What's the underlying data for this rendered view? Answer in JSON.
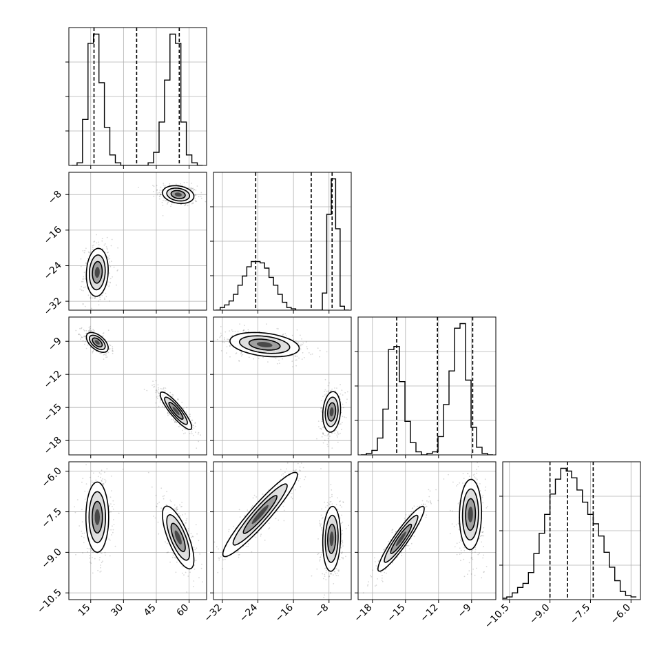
{
  "chart_data": {
    "type": "corner",
    "title": "",
    "num_parameters": 4,
    "colors": {
      "frame": "#000000",
      "grid": "#b0b0b0",
      "points": "#000000",
      "fill": "#000000"
    },
    "grid": true,
    "parameters": [
      {
        "range": [
          5,
          68
        ],
        "ticks": [
          15,
          30,
          45,
          60
        ],
        "tick_labels": [
          "15",
          "30",
          "45",
          "60"
        ]
      },
      {
        "range": [
          -34,
          -3
        ],
        "ticks": [
          -32,
          -24,
          -16,
          -8
        ],
        "tick_labels": [
          "−32",
          "−24",
          "−16",
          "−8"
        ]
      },
      {
        "range": [
          -19.3,
          -6.8
        ],
        "ticks": [
          -18,
          -15,
          -12,
          -9
        ],
        "tick_labels": [
          "−18",
          "−15",
          "−12",
          "−9"
        ]
      },
      {
        "range": [
          -10.75,
          -5.65
        ],
        "ticks": [
          -10.5,
          -9.0,
          -7.5,
          -6.0
        ],
        "tick_labels": [
          "−10.5",
          "−9.0",
          "−7.5",
          "−6.0"
        ]
      }
    ],
    "quantiles": [
      [
        16.5,
        36.0,
        55.5
      ],
      [
        -24.5,
        -12.0,
        -7.3
      ],
      [
        -15.8,
        -12.1,
        -8.9
      ],
      [
        -9.0,
        -8.35,
        -7.4
      ]
    ],
    "histograms": [
      {
        "bins": [
          7.5,
          10,
          12.5,
          15,
          17.5,
          20,
          22.5,
          25,
          27.5,
          30,
          32.5,
          35,
          37.5,
          40,
          42.5,
          45,
          47.5,
          50,
          52.5,
          55,
          57.5,
          60,
          62.5,
          65
        ],
        "counts": [
          0,
          0.02,
          0.35,
          0.93,
          1.0,
          0.63,
          0.29,
          0.08,
          0.02,
          0,
          0,
          0,
          0,
          0,
          0.02,
          0.1,
          0.33,
          0.65,
          1.0,
          0.93,
          0.33,
          0.08,
          0.02,
          0
        ]
      },
      {
        "bins": [
          -33,
          -32,
          -31,
          -30,
          -29,
          -28,
          -27,
          -26,
          -25,
          -24,
          -23,
          -22,
          -21,
          -20,
          -19,
          -18,
          -17,
          -16,
          -15,
          -14,
          -13,
          -12,
          -11,
          -10,
          -9,
          -8,
          -7,
          -6,
          -5,
          -4
        ],
        "counts": [
          0,
          0.02,
          0.04,
          0.07,
          0.12,
          0.19,
          0.26,
          0.33,
          0.37,
          0.37,
          0.36,
          0.32,
          0.25,
          0.19,
          0.12,
          0.06,
          0.02,
          0.01,
          0,
          0,
          0,
          0,
          0,
          0,
          0.13,
          0.73,
          1.0,
          0.62,
          0.03,
          0
        ]
      },
      {
        "bins": [
          -18.8,
          -18.3,
          -17.8,
          -17.3,
          -16.8,
          -16.3,
          -15.8,
          -15.3,
          -14.8,
          -14.3,
          -13.8,
          -13.3,
          -12.8,
          -12.3,
          -11.8,
          -11.3,
          -10.8,
          -10.3,
          -9.8,
          -9.3,
          -8.8,
          -8.3,
          -7.8,
          -7.3
        ],
        "counts": [
          0,
          0.01,
          0.03,
          0.11,
          0.3,
          0.69,
          0.71,
          0.48,
          0.22,
          0.08,
          0.02,
          0,
          0.01,
          0.02,
          0.12,
          0.33,
          0.55,
          0.83,
          0.86,
          0.49,
          0.18,
          0.05,
          0.01,
          0
        ]
      },
      {
        "bins": [
          -10.7,
          -10.5,
          -10.3,
          -10.1,
          -9.9,
          -9.7,
          -9.5,
          -9.3,
          -9.1,
          -8.9,
          -8.7,
          -8.5,
          -8.3,
          -8.1,
          -7.9,
          -7.7,
          -7.5,
          -7.3,
          -7.1,
          -6.9,
          -6.7,
          -6.5,
          -6.3,
          -6.1,
          -5.9
        ],
        "counts": [
          0.01,
          0.02,
          0.05,
          0.09,
          0.12,
          0.2,
          0.34,
          0.49,
          0.63,
          0.78,
          0.89,
          0.97,
          0.95,
          0.9,
          0.81,
          0.72,
          0.63,
          0.56,
          0.47,
          0.35,
          0.24,
          0.14,
          0.06,
          0.03,
          0.02
        ]
      }
    ],
    "clusters": [
      {
        "x": 1,
        "y": 2,
        "center": [
          55,
          -8
        ],
        "sigma": [
          3.6,
          1.0
        ],
        "rho": -0.2
      },
      {
        "x": 1,
        "y": 2,
        "center": [
          18,
          -25.5
        ],
        "sigma": [
          2.5,
          2.7
        ],
        "rho": 0.1
      },
      {
        "x": 1,
        "y": 3,
        "center": [
          18,
          -9.1
        ],
        "sigma": [
          2.5,
          0.45
        ],
        "rho": -0.55
      },
      {
        "x": 1,
        "y": 3,
        "center": [
          54,
          -15.3
        ],
        "sigma": [
          3.6,
          0.85
        ],
        "rho": -0.88
      },
      {
        "x": 2,
        "y": 3,
        "center": [
          -22.5,
          -9.3
        ],
        "sigma": [
          3.9,
          0.55
        ],
        "rho": -0.3
      },
      {
        "x": 2,
        "y": 3,
        "center": [
          -7.4,
          -15.4
        ],
        "sigma": [
          1.0,
          0.92
        ],
        "rho": 0.15
      },
      {
        "x": 1,
        "y": 4,
        "center": [
          18,
          -7.7
        ],
        "sigma": [
          2.6,
          0.65
        ],
        "rho": 0.0
      },
      {
        "x": 1,
        "y": 4,
        "center": [
          55,
          -8.45
        ],
        "sigma": [
          3.6,
          0.58
        ],
        "rho": -0.72
      },
      {
        "x": 2,
        "y": 4,
        "center": [
          -23.5,
          -7.6
        ],
        "sigma": [
          4.2,
          0.78
        ],
        "rho": 0.94
      },
      {
        "x": 2,
        "y": 4,
        "center": [
          -7.4,
          -8.5
        ],
        "sigma": [
          1.0,
          0.6
        ],
        "rho": 0.1
      },
      {
        "x": 3,
        "y": 4,
        "center": [
          -15.4,
          -8.5
        ],
        "sigma": [
          1.05,
          0.6
        ],
        "rho": 0.93
      },
      {
        "x": 3,
        "y": 4,
        "center": [
          -9.1,
          -7.6
        ],
        "sigma": [
          0.5,
          0.65
        ],
        "rho": 0.05
      }
    ]
  }
}
